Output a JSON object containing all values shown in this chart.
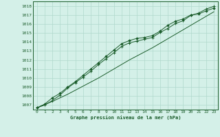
{
  "title": "Graphe pression niveau de la mer (hPa)",
  "bg_color": "#d4f0e8",
  "grid_color": "#b0d8cc",
  "line_color": "#1a5c2a",
  "xlim": [
    -0.5,
    23.5
  ],
  "ylim": [
    1006.5,
    1018.5
  ],
  "xticks": [
    0,
    1,
    2,
    3,
    4,
    5,
    6,
    7,
    8,
    9,
    10,
    11,
    12,
    13,
    14,
    15,
    16,
    17,
    18,
    19,
    20,
    21,
    22,
    23
  ],
  "yticks": [
    1007,
    1008,
    1009,
    1010,
    1011,
    1012,
    1013,
    1014,
    1015,
    1016,
    1017,
    1018
  ],
  "series_smooth": [
    1006.7,
    1007.05,
    1007.4,
    1007.8,
    1008.2,
    1008.65,
    1009.1,
    1009.55,
    1010.0,
    1010.5,
    1011.0,
    1011.5,
    1012.0,
    1012.45,
    1012.9,
    1013.35,
    1013.85,
    1014.35,
    1014.85,
    1015.35,
    1015.85,
    1016.35,
    1016.85,
    1017.35
  ],
  "series_diamond": [
    1006.7,
    1007.1,
    1007.8,
    1008.3,
    1009.0,
    1009.6,
    1010.3,
    1011.0,
    1011.7,
    1012.4,
    1013.1,
    1013.8,
    1014.15,
    1014.4,
    1014.5,
    1014.7,
    1015.2,
    1015.85,
    1016.3,
    1016.55,
    1017.0,
    1017.1,
    1017.45,
    1017.75
  ],
  "series_plus": [
    1006.7,
    1007.0,
    1007.5,
    1008.1,
    1008.9,
    1009.5,
    1010.1,
    1010.75,
    1011.5,
    1012.15,
    1012.8,
    1013.5,
    1013.9,
    1014.1,
    1014.3,
    1014.5,
    1015.05,
    1015.5,
    1016.05,
    1016.35,
    1016.95,
    1017.2,
    1017.65,
    1017.95
  ]
}
